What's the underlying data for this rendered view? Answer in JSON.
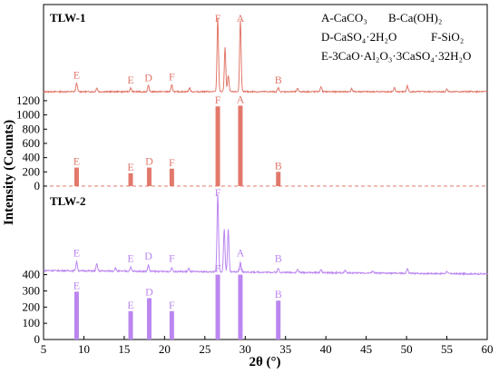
{
  "chart_data": {
    "type": "line",
    "xlabel": "2θ (°)",
    "ylabel": "Intensity (Counts)",
    "xlim": [
      5,
      60
    ],
    "x_ticks": [
      5,
      10,
      15,
      20,
      25,
      30,
      35,
      40,
      45,
      50,
      55,
      60
    ],
    "colors": {
      "tlw1": "#e2786b",
      "tlw2": "#bb86f0",
      "ref_line": "#e2786b"
    },
    "legend": [
      {
        "letter": "A",
        "compound": "A-CaCO₃"
      },
      {
        "letter": "B",
        "compound": "B-Ca(OH)₂"
      },
      {
        "letter": "D",
        "compound": "D-CaSO₄·2H₂O"
      },
      {
        "letter": "F",
        "compound": "F-SiO₂"
      },
      {
        "letter": "E",
        "compound": "E-3CaO·Al₂O₃·3CaSO₄·32H₂O"
      }
    ],
    "panels": [
      {
        "sample": "TLW-1",
        "color": "#e2786b",
        "pattern_peaks": [
          {
            "x": 9.1,
            "h": 0.12
          },
          {
            "x": 11.6,
            "h": 0.05
          },
          {
            "x": 15.8,
            "h": 0.05
          },
          {
            "x": 18.0,
            "h": 0.08
          },
          {
            "x": 20.9,
            "h": 0.09
          },
          {
            "x": 23.1,
            "h": 0.05
          },
          {
            "x": 26.6,
            "h": 1.0
          },
          {
            "x": 27.5,
            "h": 0.6
          },
          {
            "x": 27.9,
            "h": 0.22
          },
          {
            "x": 29.4,
            "h": 0.98
          },
          {
            "x": 34.1,
            "h": 0.05
          },
          {
            "x": 36.5,
            "h": 0.04
          },
          {
            "x": 39.4,
            "h": 0.07
          },
          {
            "x": 43.2,
            "h": 0.04
          },
          {
            "x": 48.5,
            "h": 0.05
          },
          {
            "x": 50.1,
            "h": 0.08
          },
          {
            "x": 55.0,
            "h": 0.04
          }
        ],
        "pattern_labels": [
          {
            "letter": "E",
            "x": 9.1
          },
          {
            "letter": "E",
            "x": 15.8
          },
          {
            "letter": "D",
            "x": 18.0
          },
          {
            "letter": "F",
            "x": 20.9
          },
          {
            "letter": "F",
            "x": 26.6
          },
          {
            "letter": "A",
            "x": 29.4
          },
          {
            "letter": "B",
            "x": 34.1
          }
        ],
        "ref_ticks": [
          0,
          200,
          400,
          600,
          800,
          1000,
          1200
        ],
        "ref_ylim": [
          0,
          1250
        ],
        "ref_bars": [
          {
            "letter": "E",
            "x": 9.1,
            "value": 260
          },
          {
            "letter": "E",
            "x": 15.8,
            "value": 180
          },
          {
            "letter": "D",
            "x": 18.1,
            "value": 260
          },
          {
            "letter": "F",
            "x": 20.9,
            "value": 245
          },
          {
            "letter": "F",
            "x": 26.6,
            "value": 1120
          },
          {
            "letter": "A",
            "x": 29.4,
            "value": 1130
          },
          {
            "letter": "B",
            "x": 34.1,
            "value": 200
          }
        ]
      },
      {
        "sample": "TLW-2",
        "color": "#bb86f0",
        "pattern_peaks": [
          {
            "x": 9.1,
            "h": 0.12
          },
          {
            "x": 11.6,
            "h": 0.09
          },
          {
            "x": 13.9,
            "h": 0.04
          },
          {
            "x": 15.8,
            "h": 0.05
          },
          {
            "x": 18.0,
            "h": 0.08
          },
          {
            "x": 20.9,
            "h": 0.05
          },
          {
            "x": 23.0,
            "h": 0.04
          },
          {
            "x": 26.6,
            "h": 1.0
          },
          {
            "x": 27.4,
            "h": 0.55
          },
          {
            "x": 27.9,
            "h": 0.55
          },
          {
            "x": 29.4,
            "h": 0.12
          },
          {
            "x": 34.1,
            "h": 0.05
          },
          {
            "x": 36.5,
            "h": 0.04
          },
          {
            "x": 39.4,
            "h": 0.04
          },
          {
            "x": 42.4,
            "h": 0.03
          },
          {
            "x": 45.8,
            "h": 0.03
          },
          {
            "x": 50.1,
            "h": 0.06
          },
          {
            "x": 55.0,
            "h": 0.03
          }
        ],
        "pattern_labels": [
          {
            "letter": "E",
            "x": 9.1
          },
          {
            "letter": "E",
            "x": 15.8
          },
          {
            "letter": "D",
            "x": 18.0
          },
          {
            "letter": "F",
            "x": 20.9
          },
          {
            "letter": "F",
            "x": 26.6
          },
          {
            "letter": "A",
            "x": 29.4
          },
          {
            "letter": "B",
            "x": 34.1
          }
        ],
        "ref_ticks": [
          0,
          100,
          200,
          300,
          400
        ],
        "ref_ylim": [
          0,
          420
        ],
        "ref_bars": [
          {
            "letter": "E",
            "x": 9.1,
            "value": 295
          },
          {
            "letter": "E",
            "x": 15.8,
            "value": 175
          },
          {
            "letter": "D",
            "x": 18.1,
            "value": 255
          },
          {
            "letter": "F",
            "x": 20.9,
            "value": 175
          },
          {
            "letter": "F",
            "x": 26.6,
            "value": 400
          },
          {
            "letter": "A",
            "x": 29.4,
            "value": 400
          },
          {
            "letter": "B",
            "x": 34.1,
            "value": 240
          }
        ]
      }
    ]
  }
}
